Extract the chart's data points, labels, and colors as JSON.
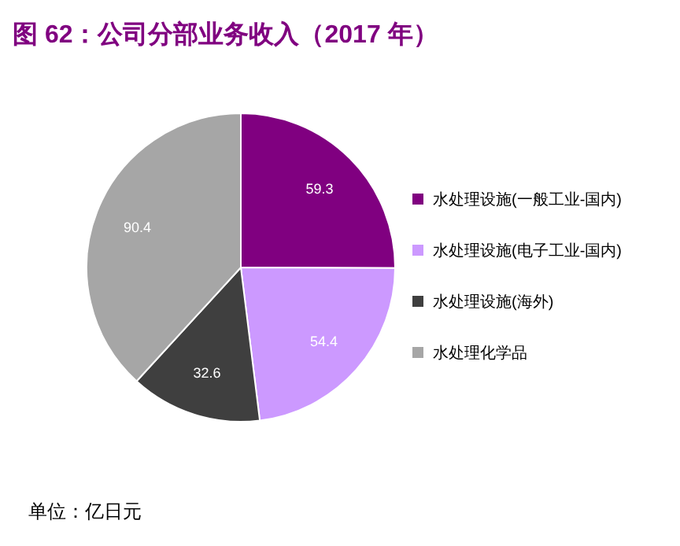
{
  "chart_data": {
    "type": "pie",
    "title": "图 62：公司分部业务收入（2017 年）",
    "categories": [
      "水处理设施(一般工业-国内)",
      "水处理设施(电子工业-国内)",
      "水处理设施(海外)",
      "水处理化学品"
    ],
    "values": [
      59.3,
      54.4,
      32.6,
      90.4
    ],
    "colors": [
      "#800080",
      "#cc99ff",
      "#3f3f3f",
      "#a6a6a6"
    ],
    "data_labels": true,
    "legend": "right",
    "annotations": [
      "单位：亿日元"
    ]
  }
}
